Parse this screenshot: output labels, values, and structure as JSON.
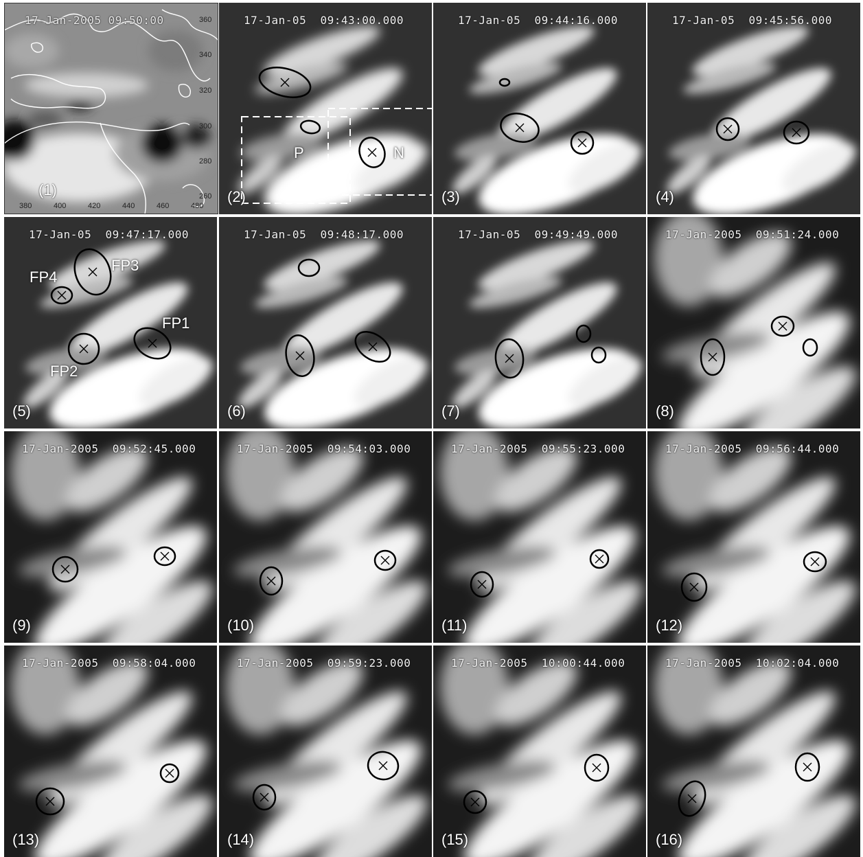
{
  "panels": [
    {
      "num": "(1)",
      "time": "17-Jan-2005 09:50:00"
    },
    {
      "num": "(2)",
      "time": "17-Jan-05  09:43:00.000"
    },
    {
      "num": "(3)",
      "time": "17-Jan-05  09:44:16.000"
    },
    {
      "num": "(4)",
      "time": "17-Jan-05  09:45:56.000"
    },
    {
      "num": "(5)",
      "time": "17-Jan-05  09:47:17.000"
    },
    {
      "num": "(6)",
      "time": "17-Jan-05  09:48:17.000"
    },
    {
      "num": "(7)",
      "time": "17-Jan-05  09:49:49.000"
    },
    {
      "num": "(8)",
      "time": "17-Jan-2005  09:51:24.000"
    },
    {
      "num": "(9)",
      "time": "17-Jan-2005  09:52:45.000"
    },
    {
      "num": "(10)",
      "time": "17-Jan-2005  09:54:03.000"
    },
    {
      "num": "(11)",
      "time": "17-Jan-2005  09:55:23.000"
    },
    {
      "num": "(12)",
      "time": "17-Jan-2005  09:56:44.000"
    },
    {
      "num": "(13)",
      "time": "17-Jan-2005  09:58:04.000"
    },
    {
      "num": "(14)",
      "time": "17-Jan-2005  09:59:23.000"
    },
    {
      "num": "(15)",
      "time": "17-Jan-2005  10:00:44.000"
    },
    {
      "num": "(16)",
      "time": "17-Jan-2005  10:02:04.000"
    }
  ],
  "panel1_axes": {
    "x_ticks": [
      "380",
      "400",
      "420",
      "440",
      "460",
      "480"
    ],
    "y_ticks": [
      "360",
      "340",
      "320",
      "300",
      "280",
      "260"
    ]
  },
  "labels": {
    "p": "P",
    "n": "N",
    "fp1": "FP1",
    "fp2": "FP2",
    "fp3": "FP3",
    "fp4": "FP4"
  },
  "colors": {
    "background": "#ffffff",
    "contour_dark": "#000000",
    "contour_light": "#ffffff",
    "label_text": "#ffffff"
  }
}
